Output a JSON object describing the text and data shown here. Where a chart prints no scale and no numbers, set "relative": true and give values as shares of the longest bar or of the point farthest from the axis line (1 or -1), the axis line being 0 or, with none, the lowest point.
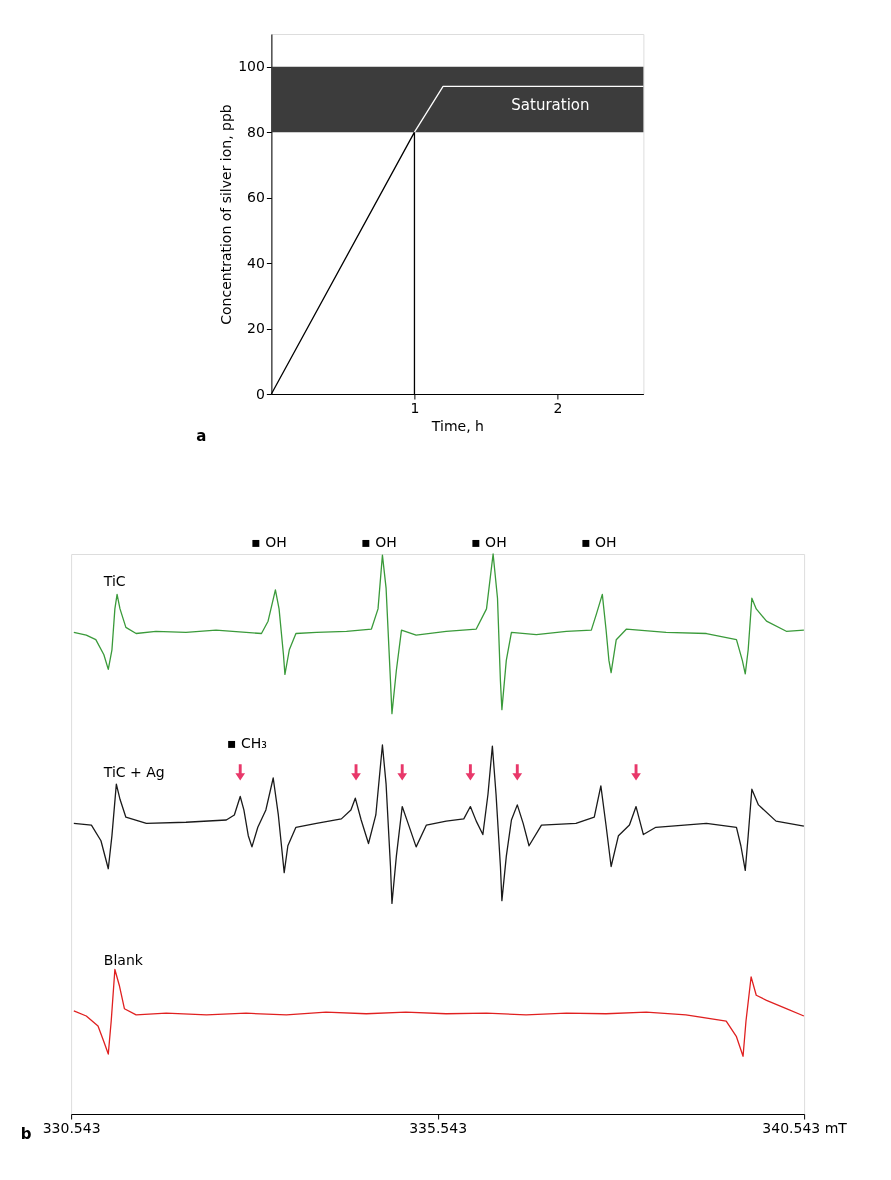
{
  "chart_data": [
    {
      "type": "line",
      "xlabel": "Time, h",
      "ylabel": "Concentration of silver ion, ppb",
      "xlim": [
        0,
        2.6
      ],
      "ylim": [
        0,
        110
      ],
      "xticks": [
        1,
        2
      ],
      "yticks": [
        0,
        20,
        40,
        60,
        80,
        100
      ],
      "grid": false,
      "legend": false,
      "marker": "none",
      "line_style": "solid",
      "bands": [
        {
          "axis": "y",
          "from": 80,
          "to": 100,
          "label": "Saturation",
          "color": "#3c3c3c"
        }
      ],
      "annotations": [
        "a"
      ],
      "series": [
        {
          "color": "#000000",
          "x": [
            0,
            1,
            1
          ],
          "values": [
            0,
            80,
            0
          ]
        },
        {
          "color": "#ffffff",
          "x": [
            1,
            1.2,
            2.6
          ],
          "values": [
            80,
            94,
            94
          ]
        }
      ]
    },
    {
      "type": "line",
      "relative": true,
      "xlim": [
        330.543,
        340.543
      ],
      "xticks": [
        330.543,
        335.543,
        {
          "value": 340.543,
          "label": "340.543 mT"
        }
      ],
      "grid": false,
      "legend": false,
      "marker": "none",
      "line_style": "solid",
      "annotations": [
        "b",
        "▪ OH",
        "▪ OH",
        "▪ OH",
        "▪ OH",
        "▪ CH₃"
      ],
      "series": [
        {
          "name": "TiC",
          "color": "#3a9a3a",
          "x": [
            330.58,
            330.75,
            330.88,
            330.99,
            331.05,
            331.1,
            331.14,
            331.17,
            331.21,
            331.29,
            331.43,
            331.7,
            332.11,
            332.52,
            332.93,
            333.14,
            333.23,
            333.33,
            333.38,
            333.44,
            333.46,
            333.52,
            333.61,
            333.89,
            334.3,
            334.64,
            334.73,
            334.79,
            334.84,
            334.9,
            334.92,
            334.98,
            335.05,
            335.25,
            335.66,
            336.07,
            336.21,
            336.3,
            336.36,
            336.4,
            336.42,
            336.48,
            336.55,
            336.89,
            337.3,
            337.64,
            337.71,
            337.79,
            337.84,
            337.88,
            337.91,
            337.98,
            338.12,
            338.66,
            339.21,
            339.62,
            339.7,
            339.74,
            339.78,
            339.83,
            339.89,
            340.03,
            340.3,
            340.54
          ],
          "values": [
            0.86,
            0.855,
            0.847,
            0.82,
            0.794,
            0.829,
            0.902,
            0.928,
            0.902,
            0.869,
            0.858,
            0.862,
            0.86,
            0.864,
            0.86,
            0.858,
            0.88,
            0.936,
            0.902,
            0.82,
            0.785,
            0.829,
            0.858,
            0.86,
            0.862,
            0.866,
            0.902,
            0.998,
            0.939,
            0.773,
            0.715,
            0.792,
            0.864,
            0.855,
            0.862,
            0.866,
            0.902,
            1.0,
            0.921,
            0.773,
            0.722,
            0.81,
            0.86,
            0.856,
            0.862,
            0.864,
            0.893,
            0.928,
            0.866,
            0.81,
            0.788,
            0.847,
            0.866,
            0.86,
            0.858,
            0.847,
            0.81,
            0.786,
            0.829,
            0.921,
            0.902,
            0.88,
            0.862,
            0.864
          ]
        },
        {
          "name": "TiC + Ag",
          "color": "#1a1a1a",
          "x": [
            330.58,
            330.82,
            330.95,
            331.05,
            331.1,
            331.16,
            331.21,
            331.29,
            331.57,
            332.11,
            332.66,
            332.77,
            332.85,
            332.9,
            332.96,
            333.01,
            333.09,
            333.2,
            333.3,
            333.37,
            333.45,
            333.5,
            333.61,
            333.89,
            334.23,
            334.36,
            334.42,
            334.5,
            334.6,
            334.7,
            334.79,
            334.84,
            334.9,
            334.92,
            334.98,
            335.06,
            335.14,
            335.25,
            335.39,
            335.66,
            335.9,
            335.99,
            336.07,
            336.16,
            336.23,
            336.29,
            336.34,
            336.4,
            336.42,
            336.48,
            336.55,
            336.63,
            336.71,
            336.79,
            336.96,
            337.43,
            337.68,
            337.77,
            337.84,
            337.91,
            338.01,
            338.16,
            338.25,
            338.35,
            338.52,
            339.21,
            339.62,
            339.68,
            339.74,
            339.78,
            339.83,
            339.92,
            340.16,
            340.54
          ],
          "values": [
            0.519,
            0.516,
            0.488,
            0.438,
            0.497,
            0.589,
            0.562,
            0.53,
            0.519,
            0.521,
            0.525,
            0.534,
            0.567,
            0.543,
            0.497,
            0.477,
            0.512,
            0.543,
            0.6,
            0.534,
            0.431,
            0.479,
            0.512,
            0.519,
            0.527,
            0.543,
            0.564,
            0.525,
            0.483,
            0.534,
            0.659,
            0.589,
            0.442,
            0.376,
            0.46,
            0.549,
            0.519,
            0.477,
            0.516,
            0.523,
            0.527,
            0.549,
            0.523,
            0.499,
            0.571,
            0.657,
            0.571,
            0.442,
            0.381,
            0.46,
            0.525,
            0.552,
            0.519,
            0.479,
            0.516,
            0.519,
            0.53,
            0.586,
            0.516,
            0.442,
            0.497,
            0.516,
            0.549,
            0.499,
            0.512,
            0.519,
            0.512,
            0.479,
            0.435,
            0.497,
            0.58,
            0.552,
            0.523,
            0.514
          ]
        },
        {
          "name": "Blank",
          "color": "#e02020",
          "x": [
            330.58,
            330.75,
            330.91,
            330.99,
            331.05,
            331.09,
            331.14,
            331.2,
            331.27,
            331.43,
            331.84,
            332.39,
            332.93,
            333.48,
            334.02,
            334.57,
            335.11,
            335.66,
            336.21,
            336.75,
            337.3,
            337.84,
            338.39,
            338.93,
            339.48,
            339.62,
            339.71,
            339.75,
            339.82,
            339.89,
            340.03,
            340.3,
            340.54
          ],
          "values": [
            0.184,
            0.175,
            0.157,
            0.129,
            0.107,
            0.166,
            0.258,
            0.23,
            0.188,
            0.177,
            0.18,
            0.177,
            0.18,
            0.177,
            0.182,
            0.179,
            0.182,
            0.179,
            0.18,
            0.177,
            0.18,
            0.179,
            0.182,
            0.177,
            0.166,
            0.138,
            0.103,
            0.166,
            0.245,
            0.212,
            0.203,
            0.188,
            0.175
          ]
        },
        {
          "type": "scatter",
          "marker": "triangle",
          "color": "#e8386a",
          "x": [
            332.85,
            334.43,
            335.06,
            335.99,
            336.63,
            338.25
          ],
          "values": [
            0.61,
            0.61,
            0.61,
            0.61,
            0.61,
            0.61
          ]
        }
      ]
    }
  ]
}
